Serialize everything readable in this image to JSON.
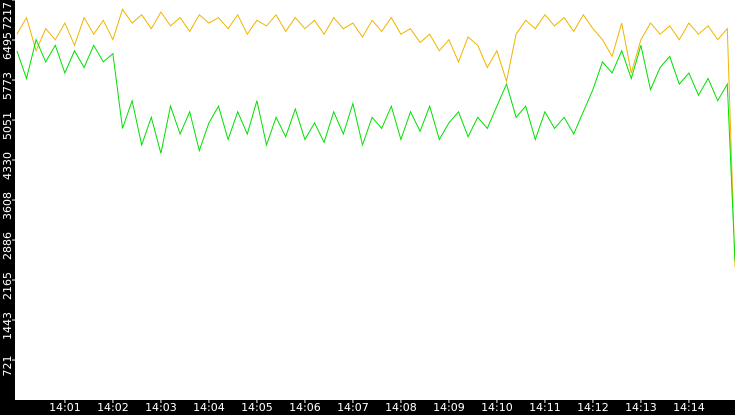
{
  "chart_data": {
    "type": "line",
    "xlim": [
      -0.04,
      14.96
    ],
    "ylim": [
      0,
      7217
    ],
    "xticks": [
      {
        "value": 1,
        "label": "14:01"
      },
      {
        "value": 2,
        "label": "14:02"
      },
      {
        "value": 3,
        "label": "14:03"
      },
      {
        "value": 4,
        "label": "14:04"
      },
      {
        "value": 5,
        "label": "14:05"
      },
      {
        "value": 6,
        "label": "14:06"
      },
      {
        "value": 7,
        "label": "14:07"
      },
      {
        "value": 8,
        "label": "14:08"
      },
      {
        "value": 9,
        "label": "14:09"
      },
      {
        "value": 10,
        "label": "14:10"
      },
      {
        "value": 11,
        "label": "14:11"
      },
      {
        "value": 12,
        "label": "14:12"
      },
      {
        "value": 13,
        "label": "14:13"
      },
      {
        "value": 14,
        "label": "14:14"
      }
    ],
    "yticks": [
      721,
      1443,
      2165,
      2886,
      3608,
      4330,
      5051,
      5773,
      6495,
      7217
    ],
    "x": [
      0,
      0.2,
      0.4,
      0.6,
      0.8,
      1.0,
      1.2,
      1.4,
      1.6,
      1.8,
      2.0,
      2.2,
      2.4,
      2.6,
      2.8,
      3.0,
      3.2,
      3.4,
      3.6,
      3.8,
      4.0,
      4.2,
      4.4,
      4.6,
      4.8,
      5.0,
      5.2,
      5.4,
      5.6,
      5.8,
      6.0,
      6.2,
      6.4,
      6.6,
      6.8,
      7.0,
      7.2,
      7.4,
      7.6,
      7.8,
      8.0,
      8.2,
      8.4,
      8.6,
      8.8,
      9.0,
      9.2,
      9.4,
      9.6,
      9.8,
      10.0,
      10.2,
      10.4,
      10.6,
      10.8,
      11.0,
      11.2,
      11.4,
      11.6,
      11.8,
      12.0,
      12.2,
      12.4,
      12.6,
      12.8,
      13.0,
      13.2,
      13.4,
      13.6,
      13.8,
      14.0,
      14.2,
      14.4,
      14.6,
      14.8,
      14.96
    ],
    "series": [
      {
        "color": "#f0b400",
        "values": [
          6600,
          6900,
          6300,
          6700,
          6500,
          6800,
          6400,
          6900,
          6600,
          6850,
          6500,
          7050,
          6800,
          6950,
          6700,
          7000,
          6750,
          6900,
          6650,
          6950,
          6800,
          6900,
          6700,
          6950,
          6600,
          6850,
          6750,
          6950,
          6650,
          6900,
          6700,
          6850,
          6600,
          6900,
          6700,
          6800,
          6550,
          6850,
          6650,
          6900,
          6600,
          6700,
          6450,
          6600,
          6300,
          6500,
          6100,
          6550,
          6400,
          6000,
          6300,
          5750,
          6600,
          6850,
          6700,
          6950,
          6750,
          6900,
          6650,
          6950,
          6700,
          6500,
          6200,
          6800,
          5900,
          6500,
          6800,
          6600,
          6750,
          6500,
          6800,
          6600,
          6750,
          6500,
          6700,
          2400
        ]
      },
      {
        "color": "#00e000",
        "values": [
          6300,
          5800,
          6500,
          6100,
          6400,
          5900,
          6300,
          6000,
          6400,
          6100,
          6250,
          4900,
          5400,
          4600,
          5100,
          4450,
          5300,
          4800,
          5200,
          4500,
          5000,
          5300,
          4700,
          5200,
          4800,
          5400,
          4600,
          5100,
          4750,
          5250,
          4700,
          5000,
          4650,
          5200,
          4800,
          5350,
          4600,
          5100,
          4900,
          5300,
          4700,
          5200,
          4850,
          5300,
          4700,
          5000,
          5200,
          4750,
          5100,
          4900,
          5300,
          5700,
          5100,
          5300,
          4700,
          5200,
          4900,
          5100,
          4800,
          5200,
          5600,
          6100,
          5900,
          6300,
          5800,
          6400,
          5600,
          6000,
          6200,
          5700,
          5900,
          5500,
          5800,
          5400,
          5700,
          2500
        ]
      }
    ]
  }
}
